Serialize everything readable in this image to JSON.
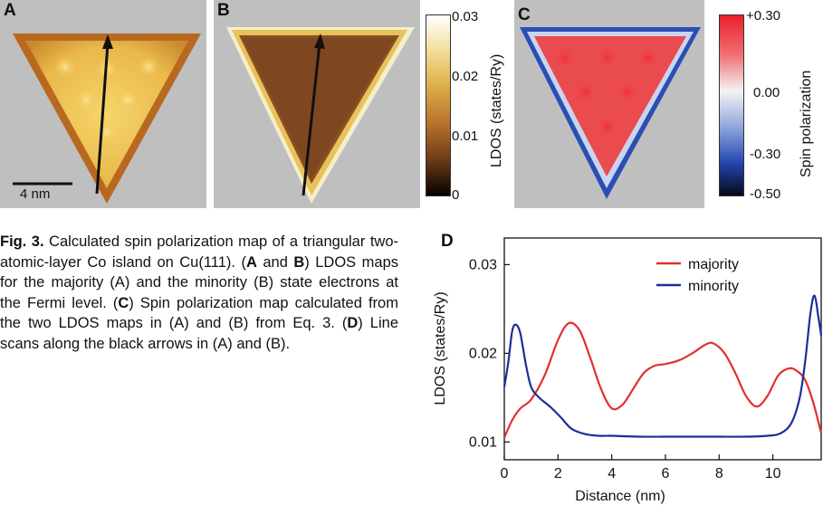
{
  "panels": {
    "a": {
      "letter": "A",
      "scalebar_label": "4 nm"
    },
    "b": {
      "letter": "B"
    },
    "c": {
      "letter": "C"
    },
    "d": {
      "letter": "D"
    }
  },
  "colorbar_ldos": {
    "label": "LDOS (states/Ry)",
    "ticks": [
      "0.03",
      "0.02",
      "0.01",
      "0"
    ]
  },
  "colorbar_spin": {
    "label": "Spin polarization",
    "ticks": [
      "+0.30",
      "0.00",
      "-0.30",
      "-0.50"
    ]
  },
  "caption": {
    "fig_label": "Fig. 3.",
    "text_1": " Calculated spin polarization map of a triangular two-atomic-layer Co island on Cu(111). (",
    "ref_ab": "A",
    "text_and": " and ",
    "ref_b": "B",
    "text_2": ") LDOS maps for the majority (A) and the minority (B) state electrons at the Fermi level. (",
    "ref_c": "C",
    "text_3": ") Spin polarization map calculated from the two LDOS maps in (A) and (B) from Eq. 3. (",
    "ref_d": "D",
    "text_4": ") Line scans along the black arrows in (A) and (B)."
  },
  "colors": {
    "majority": "#e03030",
    "minority": "#1a2f9a"
  },
  "chart_data": {
    "type": "line",
    "xlabel": "Distance (nm)",
    "ylabel": "LDOS (states/Ry)",
    "xlim": [
      0,
      11.8
    ],
    "ylim": [
      0.008,
      0.033
    ],
    "xticks": [
      "0",
      "2",
      "4",
      "6",
      "8",
      "10"
    ],
    "yticks": [
      "0.01",
      "0.02",
      "0.03"
    ],
    "legend_position": "top-right",
    "series": [
      {
        "name": "majority",
        "x": [
          0,
          0.3,
          0.6,
          1.0,
          1.5,
          2.0,
          2.4,
          2.8,
          3.2,
          3.6,
          4.0,
          4.4,
          4.8,
          5.2,
          5.6,
          6.0,
          6.5,
          7.0,
          7.5,
          7.8,
          8.2,
          8.6,
          9.0,
          9.4,
          9.8,
          10.2,
          10.6,
          10.9,
          11.2,
          11.5,
          11.8
        ],
        "y": [
          0.0105,
          0.0125,
          0.0138,
          0.0148,
          0.0175,
          0.0215,
          0.0234,
          0.0226,
          0.0195,
          0.016,
          0.0138,
          0.0142,
          0.016,
          0.0178,
          0.0186,
          0.0188,
          0.0192,
          0.02,
          0.021,
          0.0211,
          0.02,
          0.0178,
          0.0152,
          0.014,
          0.0152,
          0.0175,
          0.0183,
          0.018,
          0.017,
          0.0145,
          0.011
        ]
      },
      {
        "name": "minority",
        "x": [
          0,
          0.15,
          0.3,
          0.45,
          0.6,
          0.8,
          1.0,
          1.3,
          1.7,
          2.1,
          2.5,
          3.0,
          3.5,
          4.0,
          5.0,
          6.0,
          7.0,
          8.0,
          9.0,
          9.8,
          10.3,
          10.7,
          11.0,
          11.2,
          11.4,
          11.55,
          11.7,
          11.8
        ],
        "y": [
          0.0162,
          0.019,
          0.0226,
          0.0232,
          0.0222,
          0.0188,
          0.0162,
          0.015,
          0.014,
          0.0128,
          0.0115,
          0.0109,
          0.0107,
          0.0107,
          0.0106,
          0.0106,
          0.0106,
          0.0106,
          0.0106,
          0.0107,
          0.011,
          0.0122,
          0.015,
          0.019,
          0.0245,
          0.0265,
          0.024,
          0.022
        ]
      }
    ]
  }
}
